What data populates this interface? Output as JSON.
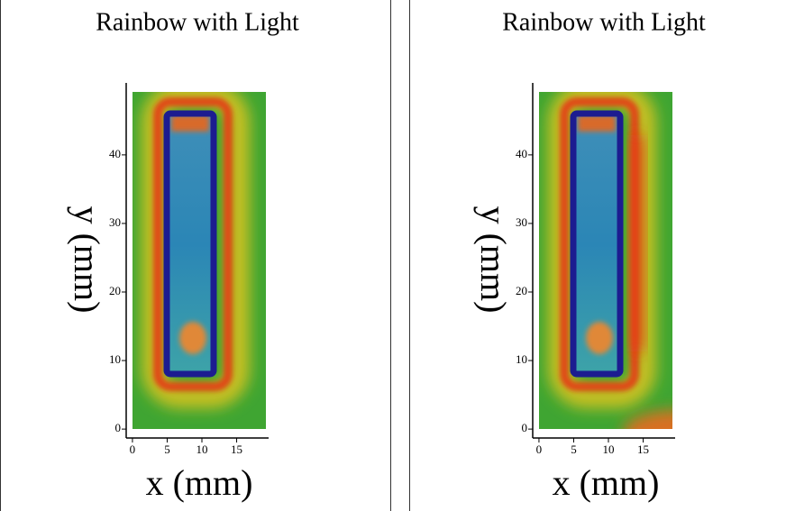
{
  "chart_data": [
    {
      "type": "heatmap",
      "title": "Rainbow with Light",
      "xlabel": "x (mm)",
      "ylabel": "y (mm)",
      "xlim": [
        -0.9,
        19.6
      ],
      "ylim": [
        -1.3,
        50.5
      ],
      "xticks": [
        0,
        5,
        10,
        15
      ],
      "yticks": [
        0,
        10,
        20,
        30,
        40
      ]
    },
    {
      "type": "heatmap",
      "title": "Rainbow with Light",
      "xlabel": "x (mm)",
      "ylabel": "y (mm)",
      "xlim": [
        -0.9,
        19.6
      ],
      "ylim": [
        -1.3,
        50.5
      ],
      "xticks": [
        0,
        5,
        10,
        15
      ],
      "yticks": [
        0,
        10,
        20,
        30,
        40
      ]
    }
  ]
}
